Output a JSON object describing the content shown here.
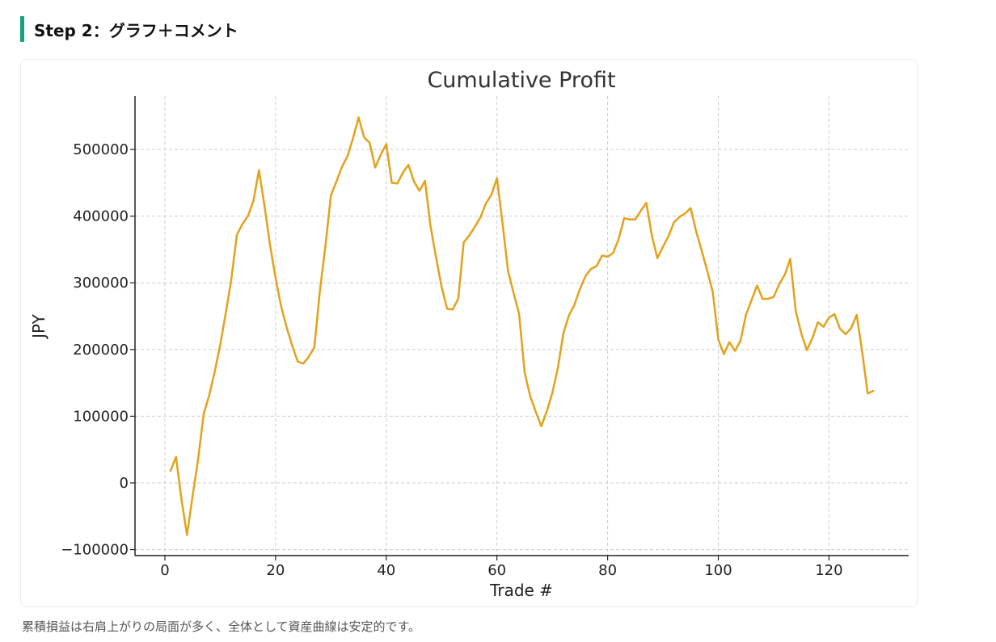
{
  "section": {
    "title": "Step 2：グラフ＋コメント",
    "accent_color": "#11a37f"
  },
  "caption": "累積損益は右肩上がりの局面が多く、全体として資産曲線は安定的です。",
  "chart_data": {
    "type": "line",
    "title": "Cumulative Profit",
    "xlabel": "Trade #",
    "ylabel": "JPY",
    "xlim": [
      -5.4,
      134.4
    ],
    "ylim": [
      -109000,
      580000
    ],
    "xticks": [
      0,
      20,
      40,
      60,
      80,
      100,
      120
    ],
    "yticks": [
      -100000,
      0,
      100000,
      200000,
      300000,
      400000,
      500000
    ],
    "ytick_labels": [
      "−100000",
      "0",
      "100000",
      "200000",
      "300000",
      "400000",
      "500000"
    ],
    "grid": true,
    "line_color": "#e3a21a",
    "series": [
      {
        "x": [
          1,
          2,
          3,
          4,
          5,
          6,
          7,
          8,
          9,
          10,
          11,
          12,
          13,
          14,
          15,
          16,
          17,
          18,
          19,
          20,
          21,
          22,
          23,
          24,
          25,
          26,
          27,
          28,
          29,
          30,
          31,
          32,
          33,
          34,
          35,
          36,
          37,
          38,
          39,
          40,
          41,
          42,
          43,
          44,
          45,
          46,
          47,
          48,
          49,
          50,
          51,
          52,
          53,
          54,
          55,
          56,
          57,
          58,
          59,
          60,
          61,
          62,
          63,
          64,
          65,
          66,
          67,
          68,
          69,
          70,
          71,
          72,
          73,
          74,
          75,
          76,
          77,
          78,
          79,
          80,
          81,
          82,
          83,
          84,
          85,
          86,
          87,
          88,
          89,
          90,
          91,
          92,
          93,
          94,
          95,
          96,
          97,
          98,
          99,
          100,
          101,
          102,
          103,
          104,
          105,
          106,
          107,
          108,
          109,
          110,
          111,
          112,
          113,
          114,
          115,
          116,
          117,
          118,
          119,
          120,
          121,
          122,
          123,
          124,
          125,
          126,
          127,
          128
        ],
        "y": [
          18000,
          39000,
          -25000,
          -78000,
          -20000,
          35000,
          103000,
          131000,
          167000,
          207000,
          255000,
          305000,
          372000,
          388000,
          400000,
          423000,
          469000,
          415000,
          357000,
          307000,
          265000,
          233000,
          206000,
          182000,
          179000,
          189000,
          203000,
          287000,
          355000,
          431000,
          452000,
          474000,
          490000,
          517000,
          548000,
          518000,
          510000,
          473000,
          492000,
          508000,
          450000,
          449000,
          465000,
          477000,
          452000,
          438000,
          453000,
          385000,
          338000,
          294000,
          261000,
          260000,
          276000,
          361000,
          371000,
          384000,
          398000,
          419000,
          432000,
          457000,
          390000,
          318000,
          285000,
          253000,
          166000,
          130000,
          107000,
          85000,
          107000,
          135000,
          172000,
          224000,
          251000,
          267000,
          291000,
          310000,
          321000,
          325000,
          341000,
          339000,
          345000,
          366000,
          397000,
          395000,
          395000,
          408000,
          420000,
          370000,
          337000,
          354000,
          370000,
          391000,
          399000,
          404000,
          412000,
          377000,
          348000,
          318000,
          286000,
          215000,
          193000,
          211000,
          198000,
          213000,
          252000,
          274000,
          296000,
          276000,
          276000,
          279000,
          298000,
          312000,
          336000,
          257000,
          224000,
          199000,
          217000,
          241000,
          234000,
          248000,
          253000,
          231000,
          223000,
          232000,
          252000,
          196000,
          134000,
          138000
        ]
      }
    ]
  }
}
